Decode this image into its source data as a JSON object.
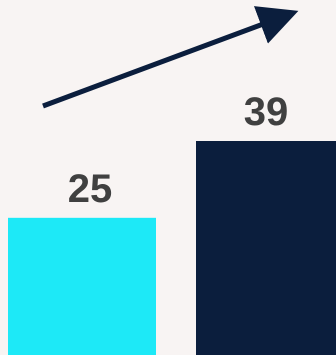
{
  "chart_data": {
    "type": "bar",
    "categories": [
      "",
      ""
    ],
    "values": [
      25,
      39
    ],
    "value_labels": [
      "25",
      "39"
    ],
    "series": [
      {
        "values": [
          25,
          39
        ]
      }
    ],
    "ylim": [
      0,
      39
    ],
    "colors": [
      "#1de9f7",
      "#0b1e3d"
    ],
    "background": "#f8f4f3",
    "label_color": "#404040",
    "annotations": [
      {
        "type": "trend-arrow",
        "direction": "up-right",
        "color": "#0b1e3d"
      }
    ],
    "grid": false,
    "legend": "none"
  }
}
